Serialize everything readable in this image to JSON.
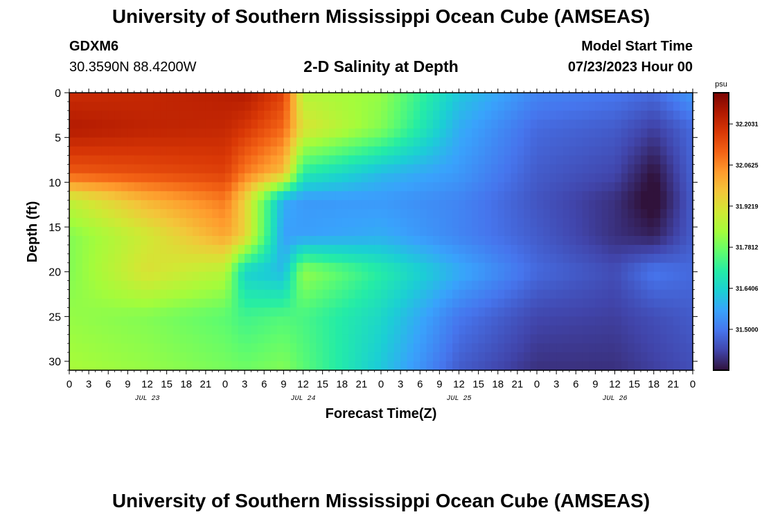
{
  "page": {
    "title": "University of Southern Mississippi Ocean Cube (AMSEAS)",
    "footer_title": "University of Southern Mississippi Ocean Cube (AMSEAS)",
    "station_id": "GDXM6",
    "station_coords": "30.3590N  88.4200W",
    "model_start_label": "Model Start Time",
    "model_start_value": "07/23/2023 Hour 00"
  },
  "chart_data": {
    "type": "heatmap",
    "title": "2-D Salinity at Depth",
    "xlabel": "Forecast Time(Z)",
    "ylabel": "Depth (ft)",
    "x_tick_labels": [
      "0",
      "3",
      "6",
      "9",
      "12",
      "15",
      "18",
      "21",
      "0",
      "3",
      "6",
      "9",
      "12",
      "15",
      "18",
      "21",
      "0",
      "3",
      "6",
      "9",
      "12",
      "15",
      "18",
      "21",
      "0",
      "3",
      "6",
      "9",
      "12",
      "15",
      "18",
      "21",
      "0"
    ],
    "x_day_labels": [
      "JUL 23",
      "JUL 24",
      "JUL 25",
      "JUL 26"
    ],
    "xlim_hours": [
      0,
      96
    ],
    "y_ticks": [
      0,
      5,
      10,
      15,
      20,
      25,
      30
    ],
    "ylim": [
      0,
      31
    ],
    "y_inverted": true,
    "colorbar": {
      "unit": "psu",
      "range": [
        31.36,
        32.31
      ],
      "ticks": [
        "32.2031",
        "32.0625",
        "31.9219",
        "31.7812",
        "31.6406",
        "31.5000"
      ],
      "colors": [
        "#30123b",
        "#4145ab",
        "#4675ed",
        "#39a2fc",
        "#1bcfd4",
        "#24eca6",
        "#61fc6c",
        "#a4fc3b",
        "#d1e834",
        "#f3c63a",
        "#fe9b2d",
        "#f36315",
        "#d93806",
        "#b11901",
        "#7a0402"
      ]
    },
    "hours": [
      0,
      12,
      24,
      27,
      33,
      36,
      48,
      60,
      72,
      84,
      90,
      96
    ],
    "depths_ft": [
      0,
      4,
      9,
      12,
      16,
      20,
      25,
      31
    ],
    "salinity_psu": [
      [
        32.2,
        32.21,
        32.23,
        32.24,
        32.16,
        31.86,
        31.82,
        31.62,
        31.52,
        31.5,
        31.48,
        31.55
      ],
      [
        32.24,
        32.22,
        32.21,
        32.18,
        32.1,
        31.92,
        31.8,
        31.58,
        31.48,
        31.46,
        31.42,
        31.48
      ],
      [
        32.12,
        32.14,
        32.16,
        32.08,
        31.98,
        31.7,
        31.6,
        31.55,
        31.46,
        31.43,
        31.36,
        31.47
      ],
      [
        31.88,
        32.0,
        32.08,
        31.95,
        31.58,
        31.55,
        31.55,
        31.52,
        31.45,
        31.4,
        31.34,
        31.46
      ],
      [
        31.8,
        31.9,
        32.02,
        31.95,
        31.56,
        31.56,
        31.58,
        31.52,
        31.46,
        31.4,
        31.38,
        31.46
      ],
      [
        31.8,
        31.92,
        31.86,
        31.64,
        31.6,
        31.82,
        31.7,
        31.58,
        31.48,
        31.44,
        31.5,
        31.48
      ],
      [
        31.82,
        31.8,
        31.76,
        31.73,
        31.75,
        31.74,
        31.65,
        31.5,
        31.43,
        31.42,
        31.44,
        31.46
      ],
      [
        31.84,
        31.82,
        31.79,
        31.78,
        31.8,
        31.76,
        31.62,
        31.46,
        31.4,
        31.4,
        31.42,
        31.44
      ]
    ]
  }
}
